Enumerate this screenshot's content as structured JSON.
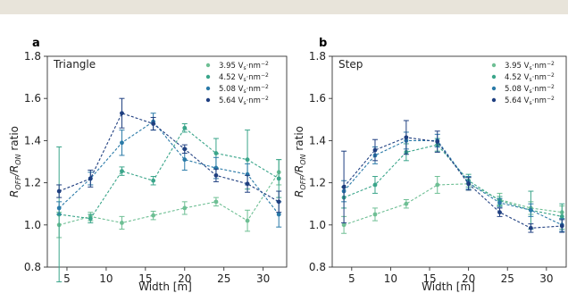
{
  "colors": [
    "#6ebf94",
    "#3aa58a",
    "#2a7aa8",
    "#1f3f80"
  ],
  "chart_data": [
    {
      "type": "line",
      "panel_letter": "a",
      "title": "Triangle",
      "xlabel": "Width [m]",
      "ylabel_main": "R",
      "ylabel_sub1": "OFF",
      "ylabel_mid": "/R",
      "ylabel_sub2": "ON",
      "ylabel_tail": " ratio",
      "xlim": [
        2.5,
        33
      ],
      "ylim": [
        0.8,
        1.8
      ],
      "xticks": [
        5,
        10,
        15,
        20,
        25,
        30
      ],
      "yticks": [
        0.8,
        1.0,
        1.2,
        1.4,
        1.6,
        1.8
      ],
      "legend_position": "top-right",
      "x": [
        4,
        8,
        12,
        16,
        20,
        24,
        28,
        32
      ],
      "series": [
        {
          "name": "3.95 V$_s$·nm$^{-2}$",
          "label_main": "3.95 V",
          "label_sub": "s",
          "label_mid": "·nm",
          "label_sup": "−2",
          "values": [
            1.0,
            1.04,
            1.01,
            1.045,
            1.08,
            1.11,
            1.02,
            1.25
          ],
          "errors": [
            0.06,
            0.02,
            0.03,
            0.02,
            0.03,
            0.02,
            0.05,
            0.06
          ]
        },
        {
          "name": "4.52 V$_s$·nm$^{-2}$",
          "label_main": "4.52 V",
          "label_sub": "s",
          "label_mid": "·nm",
          "label_sup": "−2",
          "values": [
            1.05,
            1.03,
            1.255,
            1.21,
            1.46,
            1.34,
            1.31,
            1.22
          ],
          "errors": [
            0.32,
            0.02,
            0.02,
            0.02,
            0.02,
            0.07,
            0.14,
            0.09
          ]
        },
        {
          "name": "5.08 V$_s$·nm$^{-2}$",
          "label_main": "5.08 V",
          "label_sub": "s",
          "label_mid": "·nm",
          "label_sup": "−2",
          "values": [
            1.08,
            1.22,
            1.39,
            1.49,
            1.31,
            1.27,
            1.24,
            1.05
          ],
          "errors": [
            0.03,
            0.03,
            0.06,
            0.04,
            0.05,
            0.05,
            0.05,
            0.06
          ]
        },
        {
          "name": "5.64 V$_s$·nm$^{-2}$",
          "label_main": "5.64 V",
          "label_sub": "s",
          "label_mid": "·nm",
          "label_sup": "−2",
          "values": [
            1.16,
            1.22,
            1.53,
            1.48,
            1.36,
            1.235,
            1.195,
            1.11
          ],
          "errors": [
            0.03,
            0.04,
            0.07,
            0.03,
            0.02,
            0.03,
            0.04,
            0.05
          ]
        }
      ]
    },
    {
      "type": "line",
      "panel_letter": "b",
      "title": "Step",
      "xlabel": "Width [m]",
      "ylabel_main": "R",
      "ylabel_sub1": "OFF",
      "ylabel_mid": "/R",
      "ylabel_sub2": "ON",
      "ylabel_tail": " ratio",
      "xlim": [
        2.5,
        33
      ],
      "ylim": [
        0.8,
        1.8
      ],
      "xticks": [
        5,
        10,
        15,
        20,
        25,
        30
      ],
      "yticks": [
        0.8,
        1.0,
        1.2,
        1.4,
        1.6,
        1.8
      ],
      "legend_position": "top-right",
      "x": [
        4,
        8,
        12,
        16,
        20,
        24,
        28,
        32
      ],
      "series": [
        {
          "name": "3.95 V$_s$·nm$^{-2}$",
          "label_main": "3.95 V",
          "label_sub": "s",
          "label_mid": "·nm",
          "label_sup": "−2",
          "values": [
            1.0,
            1.05,
            1.1,
            1.19,
            1.195,
            1.12,
            1.08,
            1.06
          ],
          "errors": [
            0.04,
            0.03,
            0.02,
            0.04,
            0.03,
            0.03,
            0.03,
            0.03
          ]
        },
        {
          "name": "4.52 V$_s$·nm$^{-2}$",
          "label_main": "4.52 V",
          "label_sub": "s",
          "label_mid": "·nm",
          "label_sup": "−2",
          "values": [
            1.13,
            1.19,
            1.345,
            1.38,
            1.21,
            1.115,
            1.07,
            1.04
          ],
          "errors": [
            0.05,
            0.04,
            0.04,
            0.03,
            0.03,
            0.02,
            0.09,
            0.06
          ]
        },
        {
          "name": "5.08 V$_s$·nm$^{-2}$",
          "label_main": "5.08 V",
          "label_sub": "s",
          "label_mid": "·nm",
          "label_sup": "−2",
          "values": [
            1.16,
            1.33,
            1.4,
            1.4,
            1.2,
            1.105,
            1.07,
            1.0
          ],
          "errors": [
            0.05,
            0.04,
            0.04,
            0.03,
            0.03,
            0.02,
            0.03,
            0.03
          ]
        },
        {
          "name": "5.64 V$_s$·nm$^{-2}$",
          "label_main": "5.64 V",
          "label_sub": "s",
          "label_mid": "·nm",
          "label_sup": "−2",
          "values": [
            1.18,
            1.355,
            1.415,
            1.395,
            1.195,
            1.06,
            0.985,
            0.995
          ],
          "errors": [
            0.17,
            0.05,
            0.08,
            0.05,
            0.03,
            0.02,
            0.02,
            0.03
          ]
        }
      ]
    }
  ]
}
